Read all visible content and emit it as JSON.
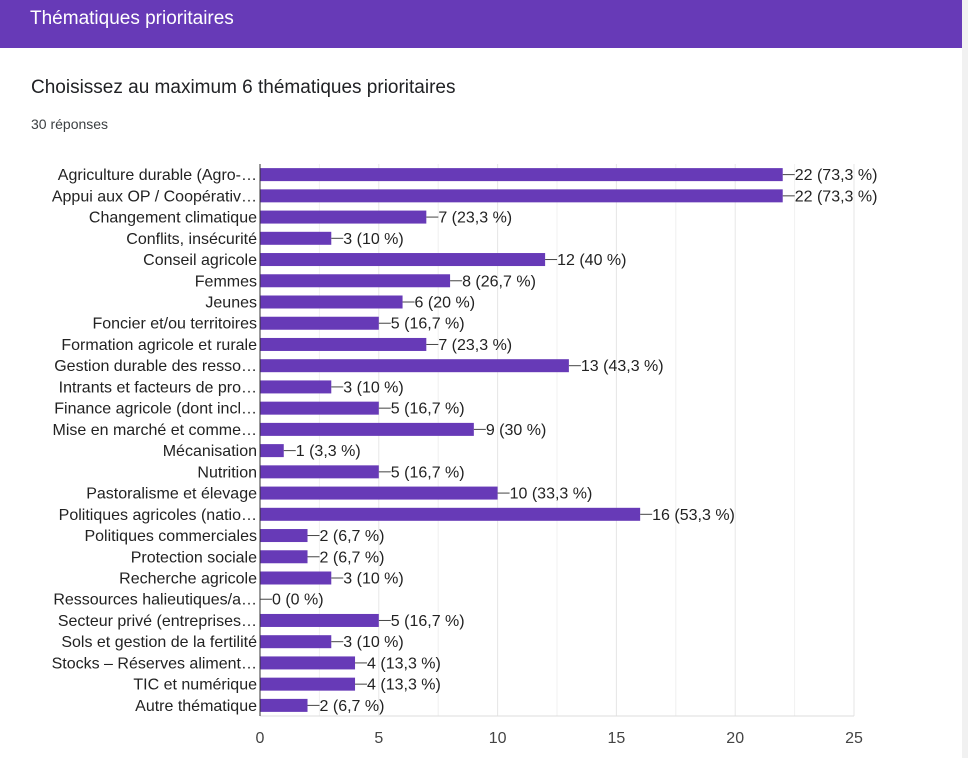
{
  "header": {
    "title": "Thématiques prioritaires"
  },
  "question": {
    "title": "Choisissez au maximum 6 thématiques prioritaires",
    "responses": "30 réponses"
  },
  "colors": {
    "header": "#673ab7",
    "bar": "#673ab7"
  },
  "chart_data": {
    "type": "bar",
    "orientation": "horizontal",
    "categories": [
      "Agriculture durable (Agro-…",
      "Appui aux OP / Coopérativ…",
      "Changement climatique",
      "Conflits, insécurité",
      "Conseil agricole",
      "Femmes",
      "Jeunes",
      "Foncier et/ou territoires",
      "Formation agricole et rurale",
      "Gestion durable des resso…",
      "Intrants et facteurs de pro…",
      "Finance agricole (dont incl…",
      "Mise en marché et comme…",
      "Mécanisation",
      "Nutrition",
      "Pastoralisme et élevage",
      "Politiques agricoles (natio…",
      "Politiques commerciales",
      "Protection sociale",
      "Recherche agricole",
      "Ressources halieutiques/a…",
      "Secteur privé (entreprises…",
      "Sols et gestion de la fertilité",
      "Stocks – Réserves aliment…",
      "TIC et numérique",
      "Autre thématique"
    ],
    "values": [
      22,
      22,
      7,
      3,
      12,
      8,
      6,
      5,
      7,
      13,
      3,
      5,
      9,
      1,
      5,
      10,
      16,
      2,
      2,
      3,
      0,
      5,
      3,
      4,
      4,
      2
    ],
    "value_labels": [
      "22 (73,3 %)",
      "22 (73,3 %)",
      "7 (23,3 %)",
      "3 (10 %)",
      "12 (40 %)",
      "8 (26,7 %)",
      "6 (20 %)",
      "5 (16,7 %)",
      "7 (23,3 %)",
      "13 (43,3 %)",
      "3 (10 %)",
      "5 (16,7 %)",
      "9 (30 %)",
      "1 (3,3 %)",
      "5 (16,7 %)",
      "10 (33,3 %)",
      "16 (53,3 %)",
      "2 (6,7 %)",
      "2 (6,7 %)",
      "3 (10 %)",
      "0 (0 %)",
      "5 (16,7 %)",
      "3 (10 %)",
      "4 (13,3 %)",
      "4 (13,3 %)",
      "2 (6,7 %)"
    ],
    "xticks": [
      0,
      5,
      10,
      15,
      20,
      25
    ],
    "xlim": [
      0,
      25
    ],
    "grid": true,
    "title": "",
    "xlabel": "",
    "ylabel": ""
  }
}
